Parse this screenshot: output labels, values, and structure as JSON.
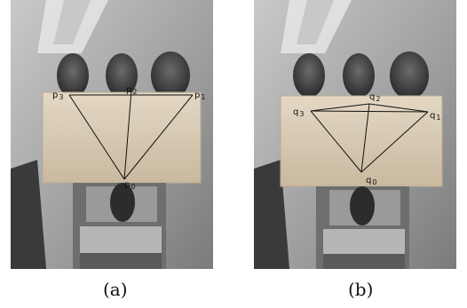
{
  "panels": [
    {
      "caption": "(a)",
      "points": [
        {
          "name": "p",
          "index": "3"
        },
        {
          "name": "p",
          "index": "2"
        },
        {
          "name": "p",
          "index": "1"
        },
        {
          "name": "p",
          "index": "0"
        }
      ]
    },
    {
      "caption": "(b)",
      "points": [
        {
          "name": "q",
          "index": "3"
        },
        {
          "name": "q",
          "index": "2"
        },
        {
          "name": "q",
          "index": "1"
        },
        {
          "name": "q",
          "index": "0"
        }
      ]
    }
  ],
  "colors": {
    "background": "#ffffff",
    "photo_base": "#8f8f8f",
    "block": "#d8cbb6",
    "lines": "#111111"
  }
}
